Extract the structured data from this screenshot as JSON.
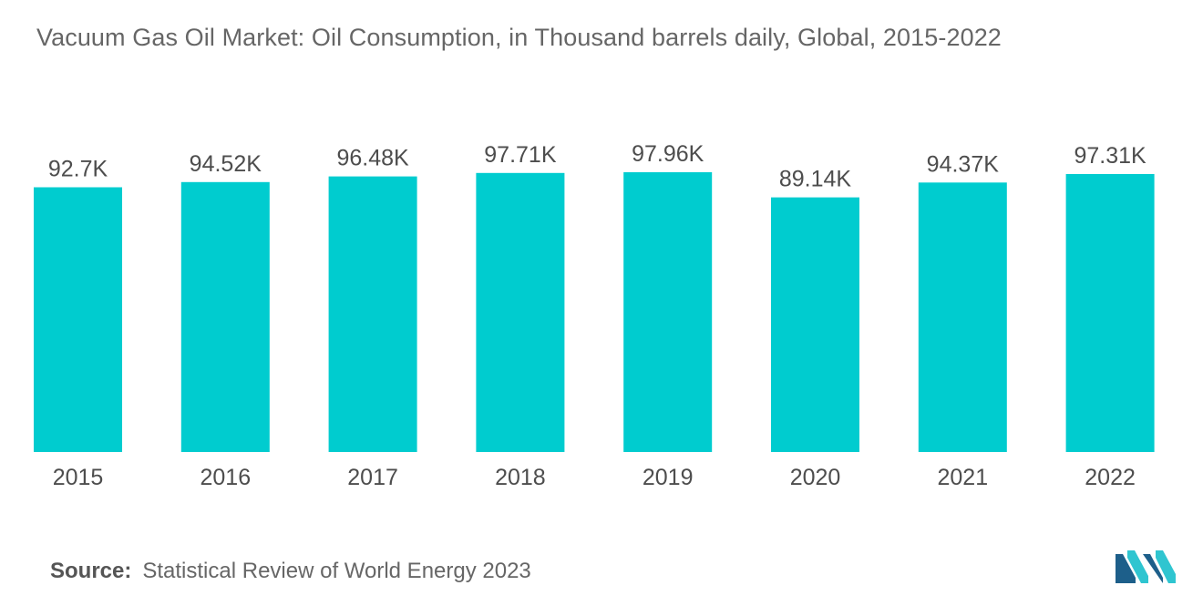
{
  "title": "Vacuum Gas Oil Market: Oil Consumption, in Thousand barrels daily, Global, 2015-2022",
  "source": {
    "label": "Source:",
    "text": "Statistical Review of World Energy 2023"
  },
  "colors": {
    "bar": "#00cccf",
    "logo_dark": "#1d5f8a",
    "logo_light": "#2fc5d0"
  },
  "chart_data": {
    "type": "bar",
    "title": "Vacuum Gas Oil Market: Oil Consumption, in Thousand barrels daily, Global, 2015-2022",
    "categories": [
      "2015",
      "2016",
      "2017",
      "2018",
      "2019",
      "2020",
      "2021",
      "2022"
    ],
    "values": [
      92.7,
      94.52,
      96.48,
      97.71,
      97.96,
      89.14,
      94.37,
      97.31
    ],
    "data_labels": [
      "92.7K",
      "94.52K",
      "96.48K",
      "97.71K",
      "97.96K",
      "89.14K",
      "94.37K",
      "97.31K"
    ],
    "xlabel": "",
    "ylabel": "",
    "ylim": [
      0,
      97.96
    ],
    "grid": false,
    "legend": "none"
  }
}
